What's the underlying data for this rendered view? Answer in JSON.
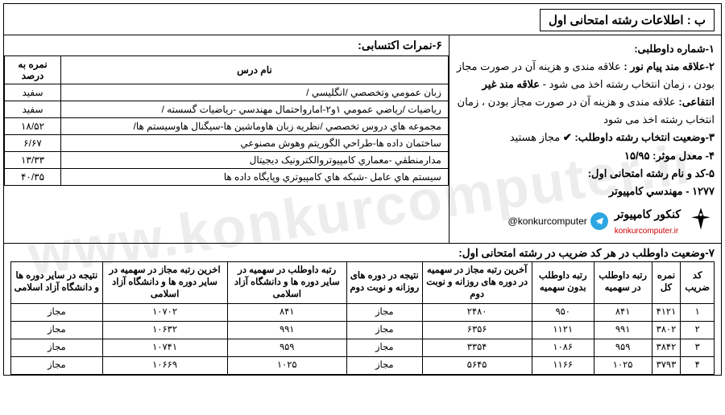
{
  "header": "ب : اطلاعات رشته امتحانی اول",
  "right_col": {
    "l1_label": "۱-شماره داوطلبی:",
    "l2_label": "۲-علاقه مند پیام نور :",
    "l2_text": "علاقه مندی و هزینه آن در صورت مجاز بودن ، زمان انتخاب رشته اخذ می شود -",
    "l2b_label": "علاقه مند غیر انتفاعی:",
    "l2b_text": "علاقه مندی و هزینه آن در صورت مجاز بودن ، زمان انتخاب رشته اخذ می شود",
    "l3_label": "۳-وضعیت انتخاب رشته داوطلب:",
    "l3_value": "مجاز هستید",
    "l4_label": "۴- معدل موثر:",
    "l4_value": "۱۵/۹۵",
    "l5_label": "۵-کد و نام رشته امتحانی اول:",
    "l5_value": "۱۲۷۷ - مهندسي کامپيوتر",
    "brand_fa": "کنکور کامپیوتر",
    "brand_en": "konkurcomputer.ir",
    "telegram": "@konkurcomputer"
  },
  "scores": {
    "title": "۶-نمرات اکتسابی:",
    "headers": [
      "نام درس",
      "نمره به درصد"
    ],
    "rows": [
      [
        "زبان عمومي وتخصصي /انگليسي /",
        "سفید"
      ],
      [
        "رياضيات /رياضي عمومي ۱و۲-امارواحتمال مهندسي -رياضيات گسسته /",
        "سفید"
      ],
      [
        "مجموعه هاي دروس تخصصي /نظريه زبان هاوماشين ها-سيگنال هاوسيستم ها/",
        "۱۸/۵۲"
      ],
      [
        "ساختمان داده ها-طراحي الگوريتم وهوش مصنوعي",
        "۶/۶۷"
      ],
      [
        "مدارمنطقي -معماري کامپيوتروالکترونيک ديجيتال",
        "۱۳/۳۳"
      ],
      [
        "سيستم هاي عامل -شبکه هاي کامپيوتري وپايگاه داده ها",
        "۴۰/۳۵"
      ]
    ]
  },
  "section7": {
    "title": "۷-وضعیت داوطلب در هر کد ضریب در رشته امتحانی اول:",
    "headers": [
      "کد ضریب",
      "نمره کل",
      "رتبه داوطلب در سهمیه",
      "رتبه داوطلب بدون سهمیه",
      "آخرین رتبه مجاز در سهمیه در دوره های روزانه و نوبت دوم",
      "نتیجه در دوره های روزانه و نوبت دوم",
      "رتبه داوطلب در سهمیه در سایر دوره ها و دانشگاه آزاد اسلامی",
      "اخرین رتبه مجاز در سهمیه در سایر دوره ها و دانشگاه آزاد اسلامی",
      "نتیجه در سایر دوره ها و دانشگاه آزاد اسلامی"
    ],
    "rows": [
      [
        "۱",
        "۴۱۲۱",
        "۸۴۱",
        "۹۵۰",
        "۲۴۸۰",
        "مجاز",
        "۸۴۱",
        "۱۰۷۰۲",
        "مجاز"
      ],
      [
        "۲",
        "۳۸۰۲",
        "۹۹۱",
        "۱۱۲۱",
        "۶۳۵۶",
        "مجاز",
        "۹۹۱",
        "۱۰۶۳۲",
        "مجاز"
      ],
      [
        "۳",
        "۳۸۴۲",
        "۹۵۹",
        "۱۰۸۶",
        "۳۳۵۴",
        "مجاز",
        "۹۵۹",
        "۱۰۷۴۱",
        "مجاز"
      ],
      [
        "۴",
        "۳۷۹۳",
        "۱۰۲۵",
        "۱۱۶۶",
        "۵۶۴۵",
        "مجاز",
        "۱۰۲۵",
        "۱۰۶۶۹",
        "مجاز"
      ]
    ]
  },
  "watermark": "www.konkurcomputer.ir"
}
